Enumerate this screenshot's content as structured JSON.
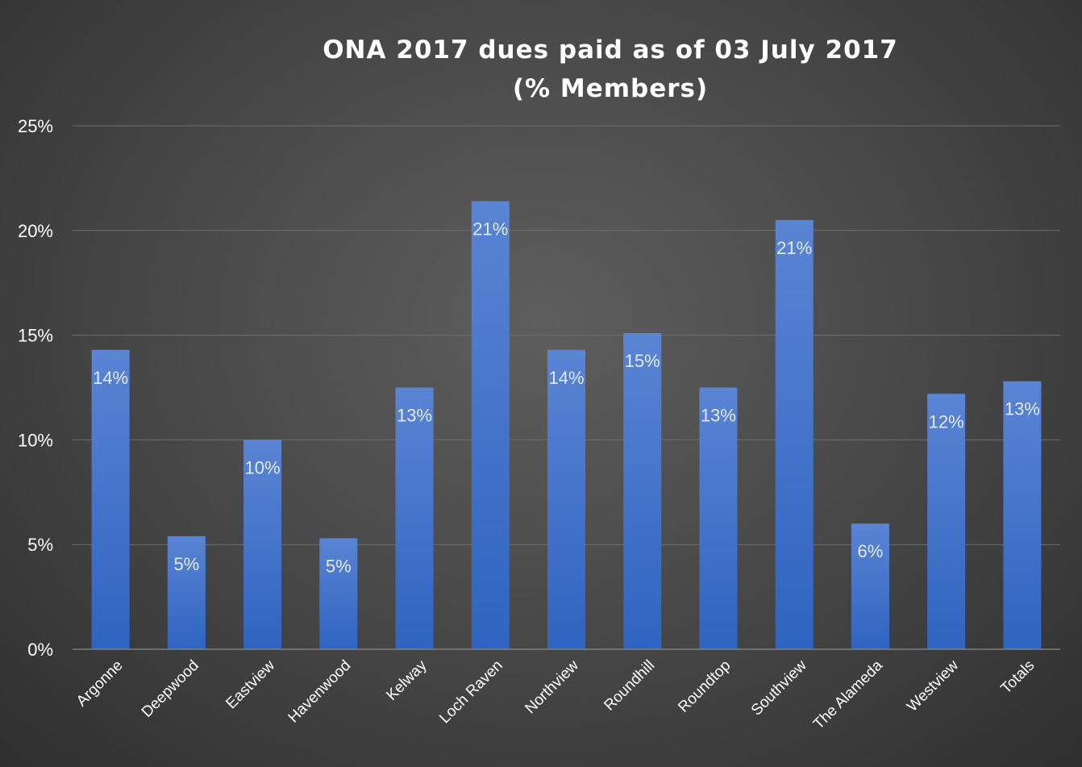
{
  "chart_data": {
    "type": "bar",
    "title": "ONA 2017 dues paid as of 03 July 2017",
    "subtitle": "(% Members)",
    "categories": [
      "Argonne",
      "Deepwood",
      "Eastview",
      "Havenwood",
      "Kelway",
      "Loch Raven",
      "Northview",
      "Roundhill",
      "Roundtop",
      "Southview",
      "The Alameda",
      "Westview",
      "Totals"
    ],
    "values": [
      14.3,
      5.4,
      10.0,
      5.3,
      12.5,
      21.4,
      14.3,
      15.1,
      12.5,
      20.5,
      6.0,
      12.2,
      12.8
    ],
    "data_labels": [
      "14%",
      "5%",
      "10%",
      "5%",
      "13%",
      "21%",
      "14%",
      "15%",
      "13%",
      "21%",
      "6%",
      "12%",
      "13%"
    ],
    "ylim": [
      0,
      25
    ],
    "yticks": [
      0,
      5,
      10,
      15,
      20,
      25
    ],
    "ytick_labels": [
      "0%",
      "5%",
      "10%",
      "15%",
      "20%",
      "25%"
    ],
    "xlabel": "",
    "ylabel": "",
    "grid": true,
    "legend": "none",
    "colors": {
      "bar_top": "#5a84d4",
      "bar_bottom": "#2f64c0",
      "background": "#4a4a4a",
      "text": "#ffffff"
    }
  }
}
